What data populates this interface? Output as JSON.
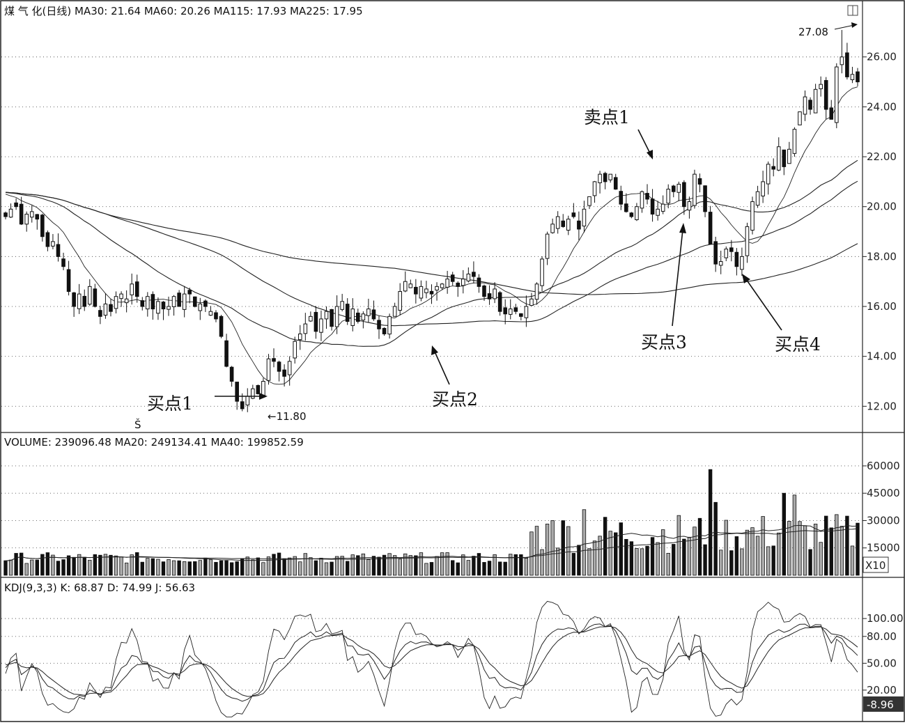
{
  "chart_data": [
    {
      "type": "candlestick",
      "panel": "price",
      "header": "煤 气 化(日线) MA30: 21.64 MA60: 20.26 MA115: 17.93 MA225: 17.95",
      "title": "煤 气 化(日线)",
      "indicators": [
        {
          "name": "MA30",
          "value": "21.64"
        },
        {
          "name": "MA60",
          "value": "20.26"
        },
        {
          "name": "MA115",
          "value": "17.93"
        },
        {
          "name": "MA225",
          "value": "17.95"
        }
      ],
      "ylim": [
        11.2,
        27.5
      ],
      "yticks": [
        {
          "value": 12,
          "label": "12.00"
        },
        {
          "value": 14,
          "label": "14.00"
        },
        {
          "value": 16,
          "label": "16.00"
        },
        {
          "value": 18,
          "label": "18.00"
        },
        {
          "value": 20,
          "label": "20.00"
        },
        {
          "value": 22,
          "label": "22.00"
        },
        {
          "value": 24,
          "label": "24.00"
        },
        {
          "value": 26,
          "label": "26.00"
        }
      ],
      "grid": true,
      "close": [
        19.6,
        19.9,
        20.0,
        19.3,
        19.7,
        19.8,
        19.5,
        18.8,
        18.4,
        18.6,
        18.0,
        17.6,
        16.6,
        16.0,
        16.5,
        16.0,
        16.8,
        16.0,
        15.6,
        16.1,
        15.8,
        16.4,
        16.5,
        16.3,
        16.9,
        16.4,
        16.0,
        16.4,
        15.9,
        16.2,
        15.9,
        16.0,
        16.4,
        16.0,
        16.5,
        16.5,
        16.0,
        16.1,
        16.0,
        15.8,
        15.5,
        14.8,
        13.6,
        13.0,
        12.2,
        11.9,
        12.4,
        12.7,
        12.5,
        13.0,
        13.9,
        13.8,
        13.4,
        13.2,
        13.8,
        14.6,
        14.9,
        15.3,
        15.6,
        15.0,
        15.5,
        15.8,
        15.2,
        16.0,
        16.2,
        15.4,
        15.9,
        15.4,
        15.7,
        15.9,
        15.5,
        15.1,
        14.9,
        15.6,
        16.0,
        16.6,
        17.0,
        16.9,
        16.5,
        16.8,
        16.7,
        16.5,
        16.8,
        16.9,
        17.1,
        17.0,
        16.8,
        17.1,
        17.3,
        17.2,
        16.8,
        16.4,
        16.3,
        16.7,
        15.8,
        15.7,
        15.9,
        15.8,
        15.6,
        16.0,
        16.3,
        16.9,
        17.9,
        18.9,
        19.3,
        19.6,
        19.2,
        19.5,
        19.6,
        19.1,
        19.9,
        20.4,
        21.0,
        21.3,
        21.0,
        21.3,
        20.7,
        20.1,
        19.8,
        19.6,
        20.0,
        20.6,
        20.3,
        19.7,
        19.9,
        20.1,
        20.7,
        20.6,
        20.9,
        20.0,
        20.2,
        21.3,
        20.9,
        19.8,
        18.5,
        17.7,
        17.8,
        18.3,
        18.2,
        17.6,
        18.0,
        19.2,
        20.2,
        20.6,
        21.0,
        21.7,
        21.5,
        22.4,
        21.6,
        22.3,
        23.1,
        23.8,
        24.4,
        23.9,
        24.7,
        24.9,
        23.9,
        23.5,
        25.6,
        26.0,
        25.2,
        25.3,
        25.0
      ],
      "annotations": [
        {
          "text": "买点1"
        },
        {
          "text": "买点2"
        },
        {
          "text": "买点3"
        },
        {
          "text": "买点4"
        },
        {
          "text": "卖点1"
        },
        {
          "text": "←11.80"
        },
        {
          "text": "27.08"
        },
        {
          "text": "Š"
        }
      ]
    },
    {
      "type": "bar",
      "panel": "volume",
      "header": "VOLUME: 239096.48 MA20: 249134.41 MA40: 199852.59",
      "indicators": [
        {
          "name": "VOLUME",
          "value": "239096.48"
        },
        {
          "name": "MA20",
          "value": "249134.41"
        },
        {
          "name": "MA40",
          "value": "199852.59"
        }
      ],
      "ylim": [
        0,
        68000
      ],
      "yticks": [
        {
          "value": 15000,
          "label": "15000"
        },
        {
          "value": 30000,
          "label": "30000"
        },
        {
          "value": 45000,
          "label": "45000"
        },
        {
          "value": 60000,
          "label": "60000"
        }
      ],
      "unit_label": "X10",
      "grid": true
    },
    {
      "type": "line",
      "panel": "kdj",
      "header": "KDJ(9,3,3) K: 68.87 D: 74.99 J: 56.63",
      "indicators": [
        {
          "name": "K",
          "value": "68.87"
        },
        {
          "name": "D",
          "value": "74.99"
        },
        {
          "name": "J",
          "value": "56.63"
        }
      ],
      "ylim": [
        -12,
        125
      ],
      "yticks": [
        {
          "value": 20,
          "label": "20.00"
        },
        {
          "value": 50,
          "label": "50.00"
        },
        {
          "value": 80,
          "label": "80.00"
        },
        {
          "value": 100,
          "label": "100.00"
        }
      ],
      "last_value_label": "-8.96",
      "grid": true
    }
  ]
}
